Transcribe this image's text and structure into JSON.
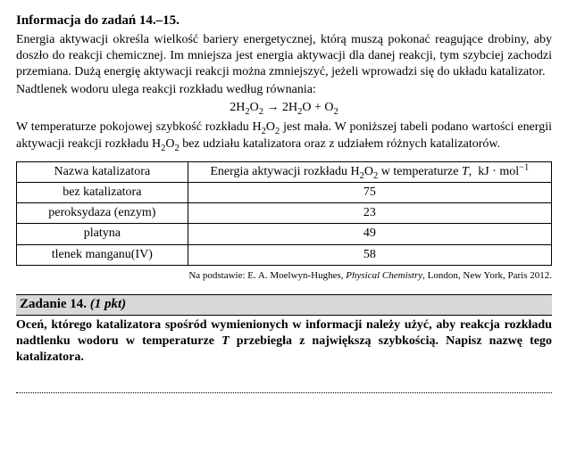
{
  "info": {
    "heading": "Informacja do zadań 14.–15.",
    "p1": "Energia aktywacji określa wielkość bariery energetycznej, którą muszą pokonać reagujące drobiny, aby doszło do reakcji chemicznej. Im mniejsza jest energia aktywacji dla danej reakcji, tym szybciej zachodzi przemiana. Dużą energię aktywacji reakcji można zmniejszyć, jeżeli wprowadzi się do układu katalizator.",
    "p2": "Nadtlenek wodoru ulega reakcji rozkładu według równania:",
    "equation_html": "2H<sub>2</sub>O<sub>2</sub> → 2H<sub>2</sub>O + O<sub>2</sub>",
    "p3_html": "W temperaturze pokojowej szybkość rozkładu H<sub>2</sub>O<sub>2</sub> jest mała. W poniższej tabeli podano wartości energii aktywacji reakcji rozkładu H<sub>2</sub>O<sub>2</sub> bez udziału katalizatora oraz z udziałem różnych katalizatorów."
  },
  "table": {
    "col1_header": "Nazwa katalizatora",
    "col2_header_html": "Energia aktywacji rozkładu H<sub>2</sub>O<sub>2</sub> w temperaturze <span class=\"ital\">T</span>,&nbsp; kJ · mol<sup>−1</sup>",
    "rows": [
      {
        "name": "bez katalizatora",
        "value": "75"
      },
      {
        "name": "peroksydaza (enzym)",
        "value": "23"
      },
      {
        "name": "platyna",
        "value": "49"
      },
      {
        "name": "tlenek manganu(IV)",
        "value": "58"
      }
    ]
  },
  "citation_html": "Na podstawie: E. A. Moelwyn-Hughes, <span class=\"ital\">Physical Chemistry</span>, London, New York, Paris 2012.",
  "task": {
    "bar_label": "Zadanie 14.",
    "bar_points": "(1 pkt)",
    "body_html": "Oceń, którego katalizatora spośród wymienionych w informacji należy użyć, aby reakcja rozkładu nadtlenku wodoru w temperaturze <span class=\"ital\">T</span> przebiegła z największą szybkością. Napisz nazwę tego katalizatora."
  }
}
